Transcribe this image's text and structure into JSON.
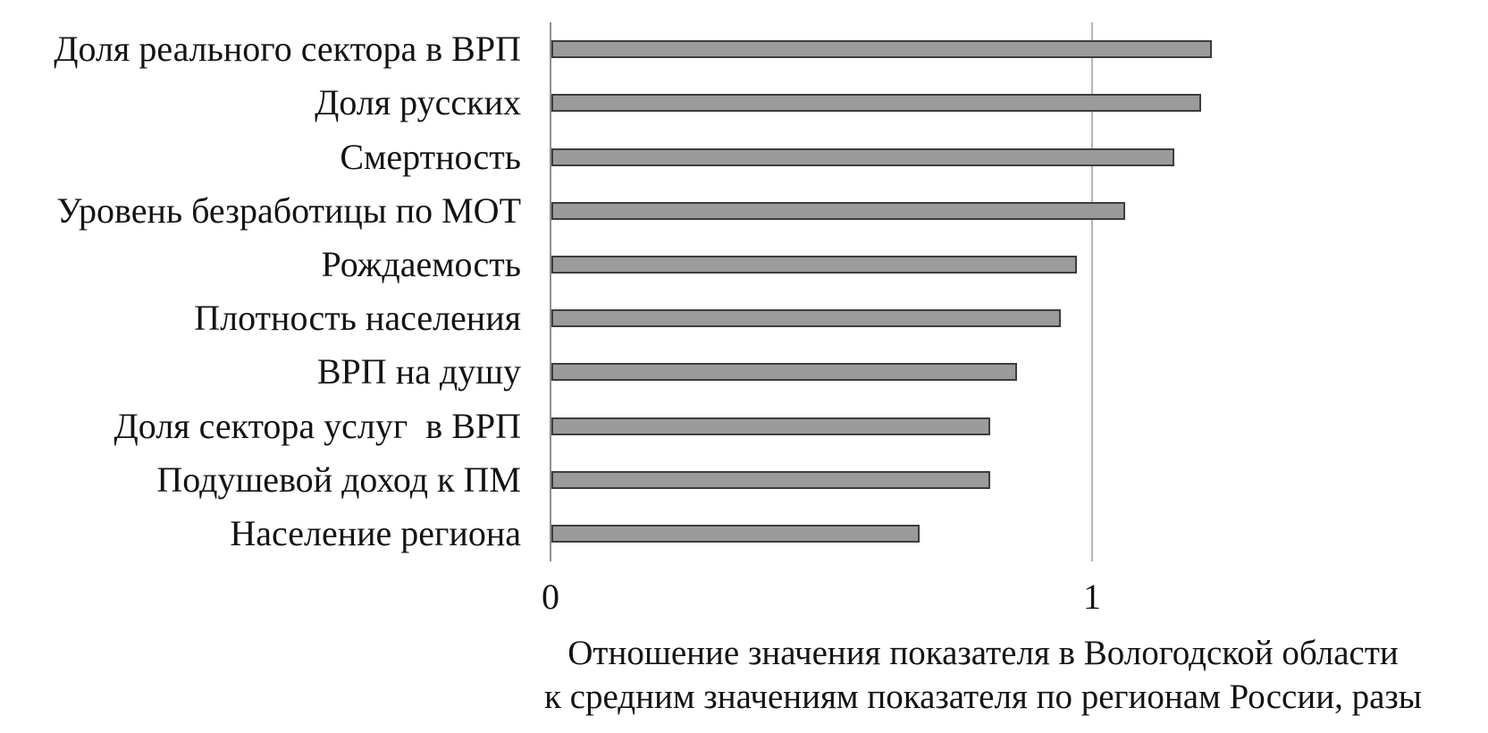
{
  "chart_data": {
    "type": "bar",
    "orientation": "horizontal",
    "title": "",
    "categories": [
      "Доля реального сектора в ВРП",
      "Доля русских",
      "Смертность",
      "Уровень безработицы по МОТ",
      "Рождаемость",
      "Плотность населения",
      "ВРП на душу",
      "Доля сектора услуг  в ВРП",
      "Подушевой доход к ПМ",
      "Население региона"
    ],
    "values": [
      1.22,
      1.2,
      1.15,
      1.06,
      0.97,
      0.94,
      0.86,
      0.81,
      0.81,
      0.68
    ],
    "xlabel_lines": [
      "Отношение значения показателя в Вологодской области",
      "к средним значениям показателя по регионам России, разы"
    ],
    "x_ticks": [
      0,
      1
    ],
    "x_tick_labels": [
      "0",
      "1"
    ],
    "xlim": [
      0,
      1.62
    ],
    "grid": "vertical-gridline-at-1",
    "legend": "none",
    "colors": {
      "bar_fill": "#9b9b9b",
      "bar_border": "#3d3d3d",
      "axis_line": "#8f8f8f",
      "gridline": "#b5b5b5",
      "text": "#141414",
      "background": "#ffffff"
    }
  }
}
